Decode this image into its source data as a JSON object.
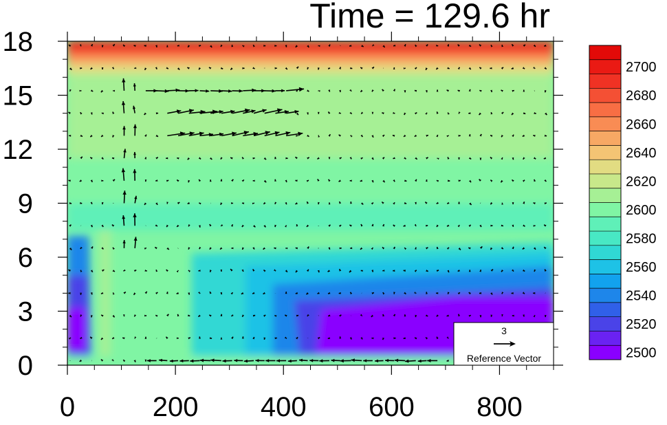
{
  "chart_data": {
    "type": "heatmap",
    "title": "Time = 129.6 hr",
    "xlabel": "",
    "ylabel": "",
    "xlim": [
      0,
      900
    ],
    "ylim": [
      0,
      18
    ],
    "x_ticks": [
      "0",
      "200",
      "400",
      "600",
      "800"
    ],
    "y_ticks": [
      "0",
      "3",
      "6",
      "9",
      "12",
      "15",
      "18"
    ],
    "colorbar": {
      "levels": [
        2500,
        2510,
        2520,
        2530,
        2540,
        2550,
        2560,
        2570,
        2580,
        2590,
        2600,
        2610,
        2620,
        2630,
        2640,
        2650,
        2660,
        2670,
        2680,
        2690,
        2700,
        2710
      ],
      "colors": [
        "#8a00ff",
        "#6a22f2",
        "#4a43e8",
        "#3060e8",
        "#1e86ea",
        "#12a2ee",
        "#1ec2e6",
        "#30d8d4",
        "#48e8c4",
        "#5ff0b8",
        "#80f5a4",
        "#a6f095",
        "#c8e88a",
        "#e2dc82",
        "#f4c474",
        "#f7a864",
        "#f98c54",
        "#f86e44",
        "#f45034",
        "#f03224",
        "#ea1a14",
        "#e20a08"
      ],
      "tick_labels": [
        "2500",
        "2520",
        "2540",
        "2560",
        "2580",
        "2600",
        "2620",
        "2640",
        "2660",
        "2680",
        "2700"
      ]
    },
    "reference_vector": {
      "value": "3",
      "label": "Reference Vector"
    }
  }
}
